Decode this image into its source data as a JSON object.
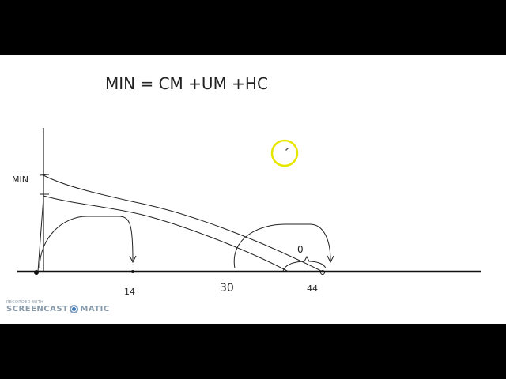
{
  "equation": "MIN = CM +UM +HC",
  "diagram": {
    "y_axis_label": "MIN",
    "x_labels": [
      "14",
      "30",
      "44"
    ],
    "gap_label": "0"
  },
  "cursor": {
    "color": "#e6e600",
    "icon": "pencil-icon"
  },
  "watermark": {
    "line1": "RECORDED WITH",
    "brand_left": "SCREENCAST",
    "brand_right": "MATIC"
  }
}
